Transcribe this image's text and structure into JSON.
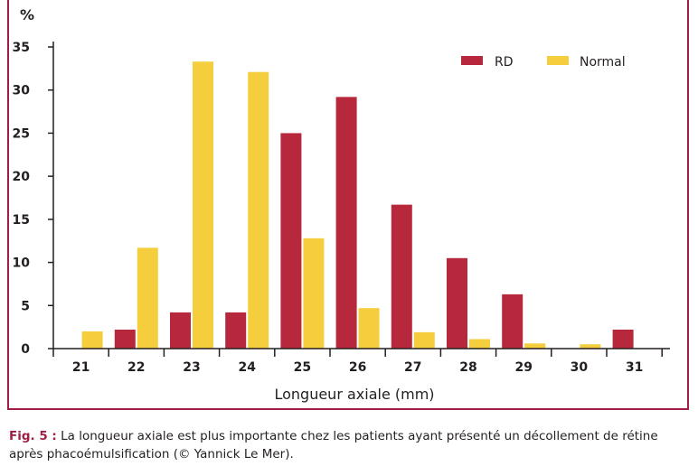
{
  "chart_data": {
    "type": "bar",
    "ylabel": "%",
    "xlabel": "Longueur axiale (mm)",
    "categories": [
      "21",
      "22",
      "23",
      "24",
      "25",
      "26",
      "27",
      "28",
      "29",
      "30",
      "31"
    ],
    "yticks": [
      "0",
      "5",
      "10",
      "15",
      "20",
      "25",
      "30",
      "35"
    ],
    "ylim": [
      0,
      35
    ],
    "legend_position": "top-right",
    "series": [
      {
        "name": "RD",
        "color": "#b8283d",
        "values": [
          0,
          2.2,
          4.2,
          4.2,
          25,
          29.2,
          16.7,
          10.5,
          6.3,
          0,
          2.2
        ]
      },
      {
        "name": "Normal",
        "color": "#f5ce3e",
        "values": [
          2.0,
          11.7,
          33.3,
          32.1,
          12.8,
          4.7,
          1.9,
          1.1,
          0.6,
          0.5,
          0
        ]
      }
    ]
  },
  "caption": {
    "label": "Fig. 5 :",
    "text": " La longueur axiale est plus importante chez les patients ayant présenté un décollement de rétine après phacoémulsification (© Yannick Le Mer)."
  }
}
